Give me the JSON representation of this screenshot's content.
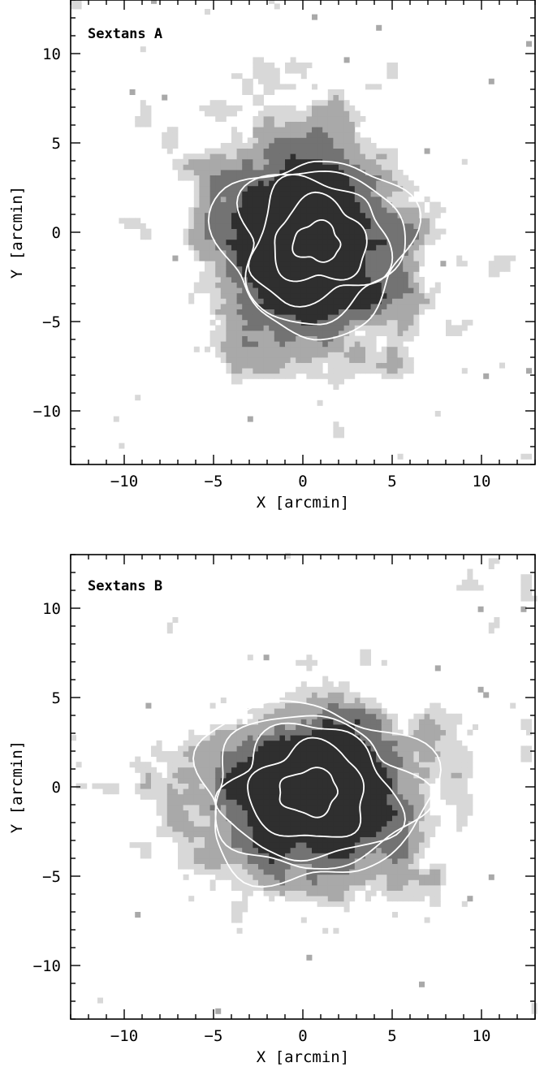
{
  "colors": {
    "background": "#ffffff",
    "frame": "#000000",
    "contour": "#ffffff",
    "density_levels": [
      "#d8d8d8",
      "#a9a9a9",
      "#737373",
      "#2f2f2f"
    ]
  },
  "chart_data": [
    {
      "type": "heatmap",
      "title": "Sextans A",
      "xlabel": "X [arcmin]",
      "ylabel": "Y [arcmin]",
      "xlim": [
        -13,
        13
      ],
      "ylim": [
        -13,
        13
      ],
      "xticks": [
        "−10",
        "−5",
        "0",
        "5",
        "10"
      ],
      "yticks": [
        "10",
        "5",
        "0",
        "−5",
        "−10"
      ],
      "xtick_values": [
        -10,
        -5,
        0,
        5,
        10
      ],
      "ytick_values": [
        10,
        5,
        0,
        -5,
        -10
      ],
      "grid": false,
      "density_model": {
        "center": [
          0.8,
          -0.6
        ],
        "core_radius": [
          4.8,
          4.8
        ],
        "extent_radius": [
          8.6,
          11.0
        ],
        "extent_center": [
          -0.8,
          -0.2
        ]
      },
      "contours": {
        "center": [
          0.8,
          -0.6
        ],
        "radii": [
          [
            5.2,
            5.0
          ],
          [
            4.6,
            4.3
          ],
          [
            3.8,
            3.5
          ],
          [
            2.6,
            2.4
          ],
          [
            1.3,
            1.1
          ]
        ]
      }
    },
    {
      "type": "heatmap",
      "title": "Sextans B",
      "xlabel": "X [arcmin]",
      "ylabel": "Y [arcmin]",
      "xlim": [
        -13,
        13
      ],
      "ylim": [
        -13,
        13
      ],
      "xticks": [
        "−10",
        "−5",
        "0",
        "5",
        "10"
      ],
      "yticks": [
        "10",
        "5",
        "0",
        "−5",
        "−10"
      ],
      "xtick_values": [
        -10,
        -5,
        0,
        5,
        10
      ],
      "ytick_values": [
        10,
        5,
        0,
        -5,
        -10
      ],
      "grid": false,
      "density_model": {
        "center": [
          0.4,
          -0.3
        ],
        "core_radius": [
          6.0,
          4.7
        ],
        "extent_radius": [
          8.0,
          5.8
        ],
        "extent_center": [
          0.5,
          -0.2
        ]
      },
      "contours": {
        "center": [
          0.4,
          -0.3
        ],
        "radii": [
          [
            6.3,
            5.0
          ],
          [
            5.7,
            4.3
          ],
          [
            4.7,
            3.7
          ],
          [
            3.2,
            2.6
          ],
          [
            1.6,
            1.3
          ]
        ]
      }
    }
  ]
}
